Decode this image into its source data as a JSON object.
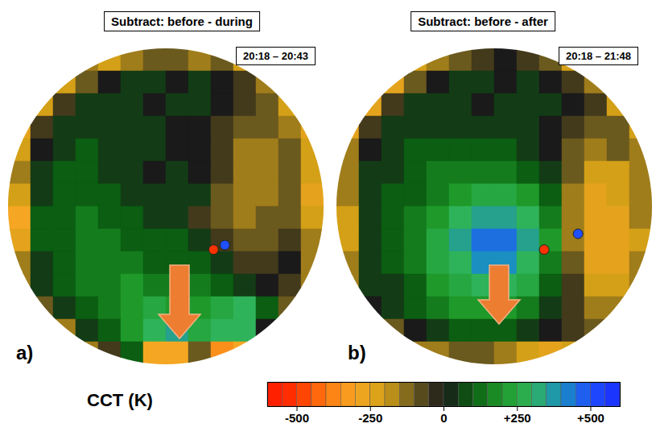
{
  "chart_data": [
    {
      "type": "heatmap",
      "title": "Subtract: before - during",
      "subtitle": "20:18 – 20:43",
      "annotations": [
        {
          "text": "a)"
        }
      ],
      "tick_labels": false,
      "cells": [
        [
          null,
          null,
          null,
          -150,
          -200,
          -150,
          -100,
          -100,
          -150,
          -100,
          -200,
          null,
          null,
          null
        ],
        [
          null,
          null,
          -200,
          -100,
          0,
          50,
          50,
          0,
          50,
          0,
          -50,
          -150,
          null,
          null
        ],
        [
          null,
          -200,
          -50,
          50,
          50,
          50,
          0,
          50,
          50,
          0,
          -50,
          -100,
          -200,
          null
        ],
        [
          -250,
          -50,
          50,
          50,
          50,
          50,
          50,
          0,
          0,
          -50,
          -100,
          -100,
          -150,
          -250
        ],
        [
          -200,
          0,
          50,
          100,
          50,
          50,
          50,
          0,
          0,
          -50,
          -150,
          -150,
          -100,
          -200
        ],
        [
          -150,
          50,
          100,
          100,
          50,
          50,
          0,
          50,
          0,
          -50,
          -150,
          -150,
          -100,
          -200
        ],
        [
          -200,
          50,
          100,
          100,
          100,
          50,
          50,
          50,
          50,
          -100,
          -150,
          -150,
          -100,
          -250
        ],
        [
          -300,
          100,
          100,
          150,
          100,
          100,
          50,
          50,
          -50,
          -100,
          -150,
          -100,
          -100,
          -200
        ],
        [
          -250,
          100,
          100,
          150,
          150,
          100,
          100,
          100,
          50,
          -50,
          -100,
          -100,
          -50,
          -150
        ],
        [
          -150,
          50,
          100,
          150,
          150,
          150,
          100,
          100,
          100,
          50,
          -50,
          -50,
          0,
          -150
        ],
        [
          -150,
          50,
          100,
          150,
          150,
          200,
          150,
          150,
          150,
          100,
          50,
          0,
          -50,
          -150
        ],
        [
          null,
          -100,
          50,
          100,
          150,
          200,
          250,
          200,
          200,
          250,
          300,
          100,
          -100,
          null
        ],
        [
          null,
          null,
          -150,
          50,
          100,
          200,
          300,
          350,
          250,
          300,
          300,
          0,
          null,
          null
        ],
        [
          null,
          null,
          null,
          -150,
          -50,
          100,
          -300,
          -300,
          -100,
          -350,
          -300,
          null,
          null,
          null
        ]
      ],
      "spots": [
        {
          "x": 9.1,
          "y": 8.9,
          "value": -500
        },
        {
          "x": 9.6,
          "y": 8.7,
          "value": 500
        }
      ]
    },
    {
      "type": "heatmap",
      "title": "Subtract: before - after",
      "subtitle": "20:18 – 21:48",
      "annotations": [
        {
          "text": "b)"
        }
      ],
      "tick_labels": false,
      "cells": [
        [
          null,
          null,
          null,
          -200,
          -150,
          -100,
          -50,
          0,
          -50,
          -100,
          -200,
          null,
          null,
          null
        ],
        [
          null,
          null,
          -250,
          -100,
          0,
          50,
          50,
          0,
          50,
          0,
          -50,
          -150,
          null,
          null
        ],
        [
          null,
          -250,
          -50,
          50,
          50,
          50,
          0,
          50,
          50,
          50,
          0,
          -50,
          -200,
          null
        ],
        [
          -250,
          -50,
          50,
          50,
          50,
          50,
          50,
          50,
          50,
          0,
          -50,
          -100,
          -100,
          -200
        ],
        [
          -150,
          0,
          50,
          100,
          100,
          100,
          100,
          100,
          50,
          0,
          -100,
          -150,
          -100,
          -150
        ],
        [
          -150,
          50,
          50,
          100,
          150,
          150,
          150,
          150,
          100,
          50,
          -100,
          -200,
          -200,
          -150
        ],
        [
          -150,
          50,
          100,
          100,
          150,
          200,
          250,
          250,
          200,
          100,
          -150,
          -250,
          -200,
          -150
        ],
        [
          -200,
          50,
          100,
          150,
          200,
          300,
          350,
          350,
          300,
          150,
          -150,
          -250,
          -250,
          -150
        ],
        [
          -200,
          50,
          100,
          150,
          250,
          350,
          450,
          450,
          350,
          200,
          -150,
          -250,
          -250,
          -200
        ],
        [
          -150,
          50,
          100,
          150,
          250,
          300,
          400,
          400,
          300,
          150,
          -100,
          -250,
          -250,
          -150
        ],
        [
          -150,
          50,
          50,
          100,
          200,
          250,
          300,
          300,
          250,
          100,
          -50,
          -200,
          -200,
          -150
        ],
        [
          null,
          0,
          50,
          100,
          150,
          200,
          200,
          200,
          150,
          50,
          -50,
          -150,
          -150,
          null
        ],
        [
          null,
          null,
          -100,
          0,
          50,
          100,
          100,
          100,
          50,
          0,
          -50,
          -100,
          null,
          null
        ],
        [
          null,
          null,
          null,
          -150,
          -150,
          -100,
          -100,
          -150,
          -200,
          -250,
          -200,
          null,
          null,
          null
        ]
      ],
      "spots": [
        {
          "x": 9.2,
          "y": 8.9,
          "value": -500
        },
        {
          "x": 10.7,
          "y": 8.2,
          "value": 500
        }
      ]
    }
  ],
  "colorbar": {
    "label": "CCT (K)",
    "range": [
      -600,
      600
    ],
    "ticks": [
      -500,
      -250,
      0,
      {
        "value": 250,
        "label": "+250"
      },
      {
        "value": 500,
        "label": "+500"
      }
    ]
  }
}
